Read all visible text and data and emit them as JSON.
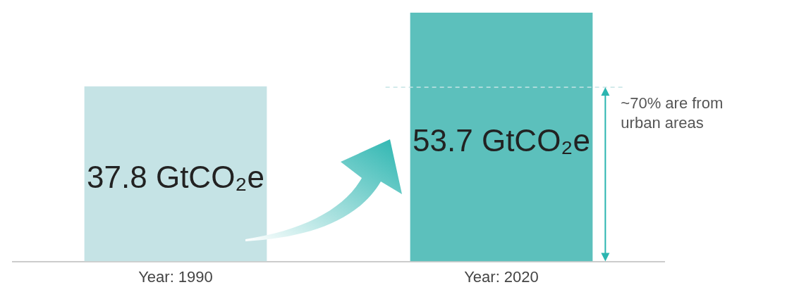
{
  "chart_data": {
    "type": "bar",
    "categories": [
      "Year: 1990",
      "Year: 2020"
    ],
    "values": [
      37.8,
      53.7
    ],
    "colors": [
      "#c5e3e5",
      "#5cc0bc"
    ],
    "value_labels": [
      "37.8 GtCO₂e",
      "53.7 GtCO₂e"
    ],
    "ref_lines": [
      {
        "axis": "y",
        "value": 37.6,
        "label": "~70% are from urban areas",
        "color": "#c5e3e5",
        "line_style": "dashed"
      }
    ],
    "grid": false,
    "legend": false
  }
}
